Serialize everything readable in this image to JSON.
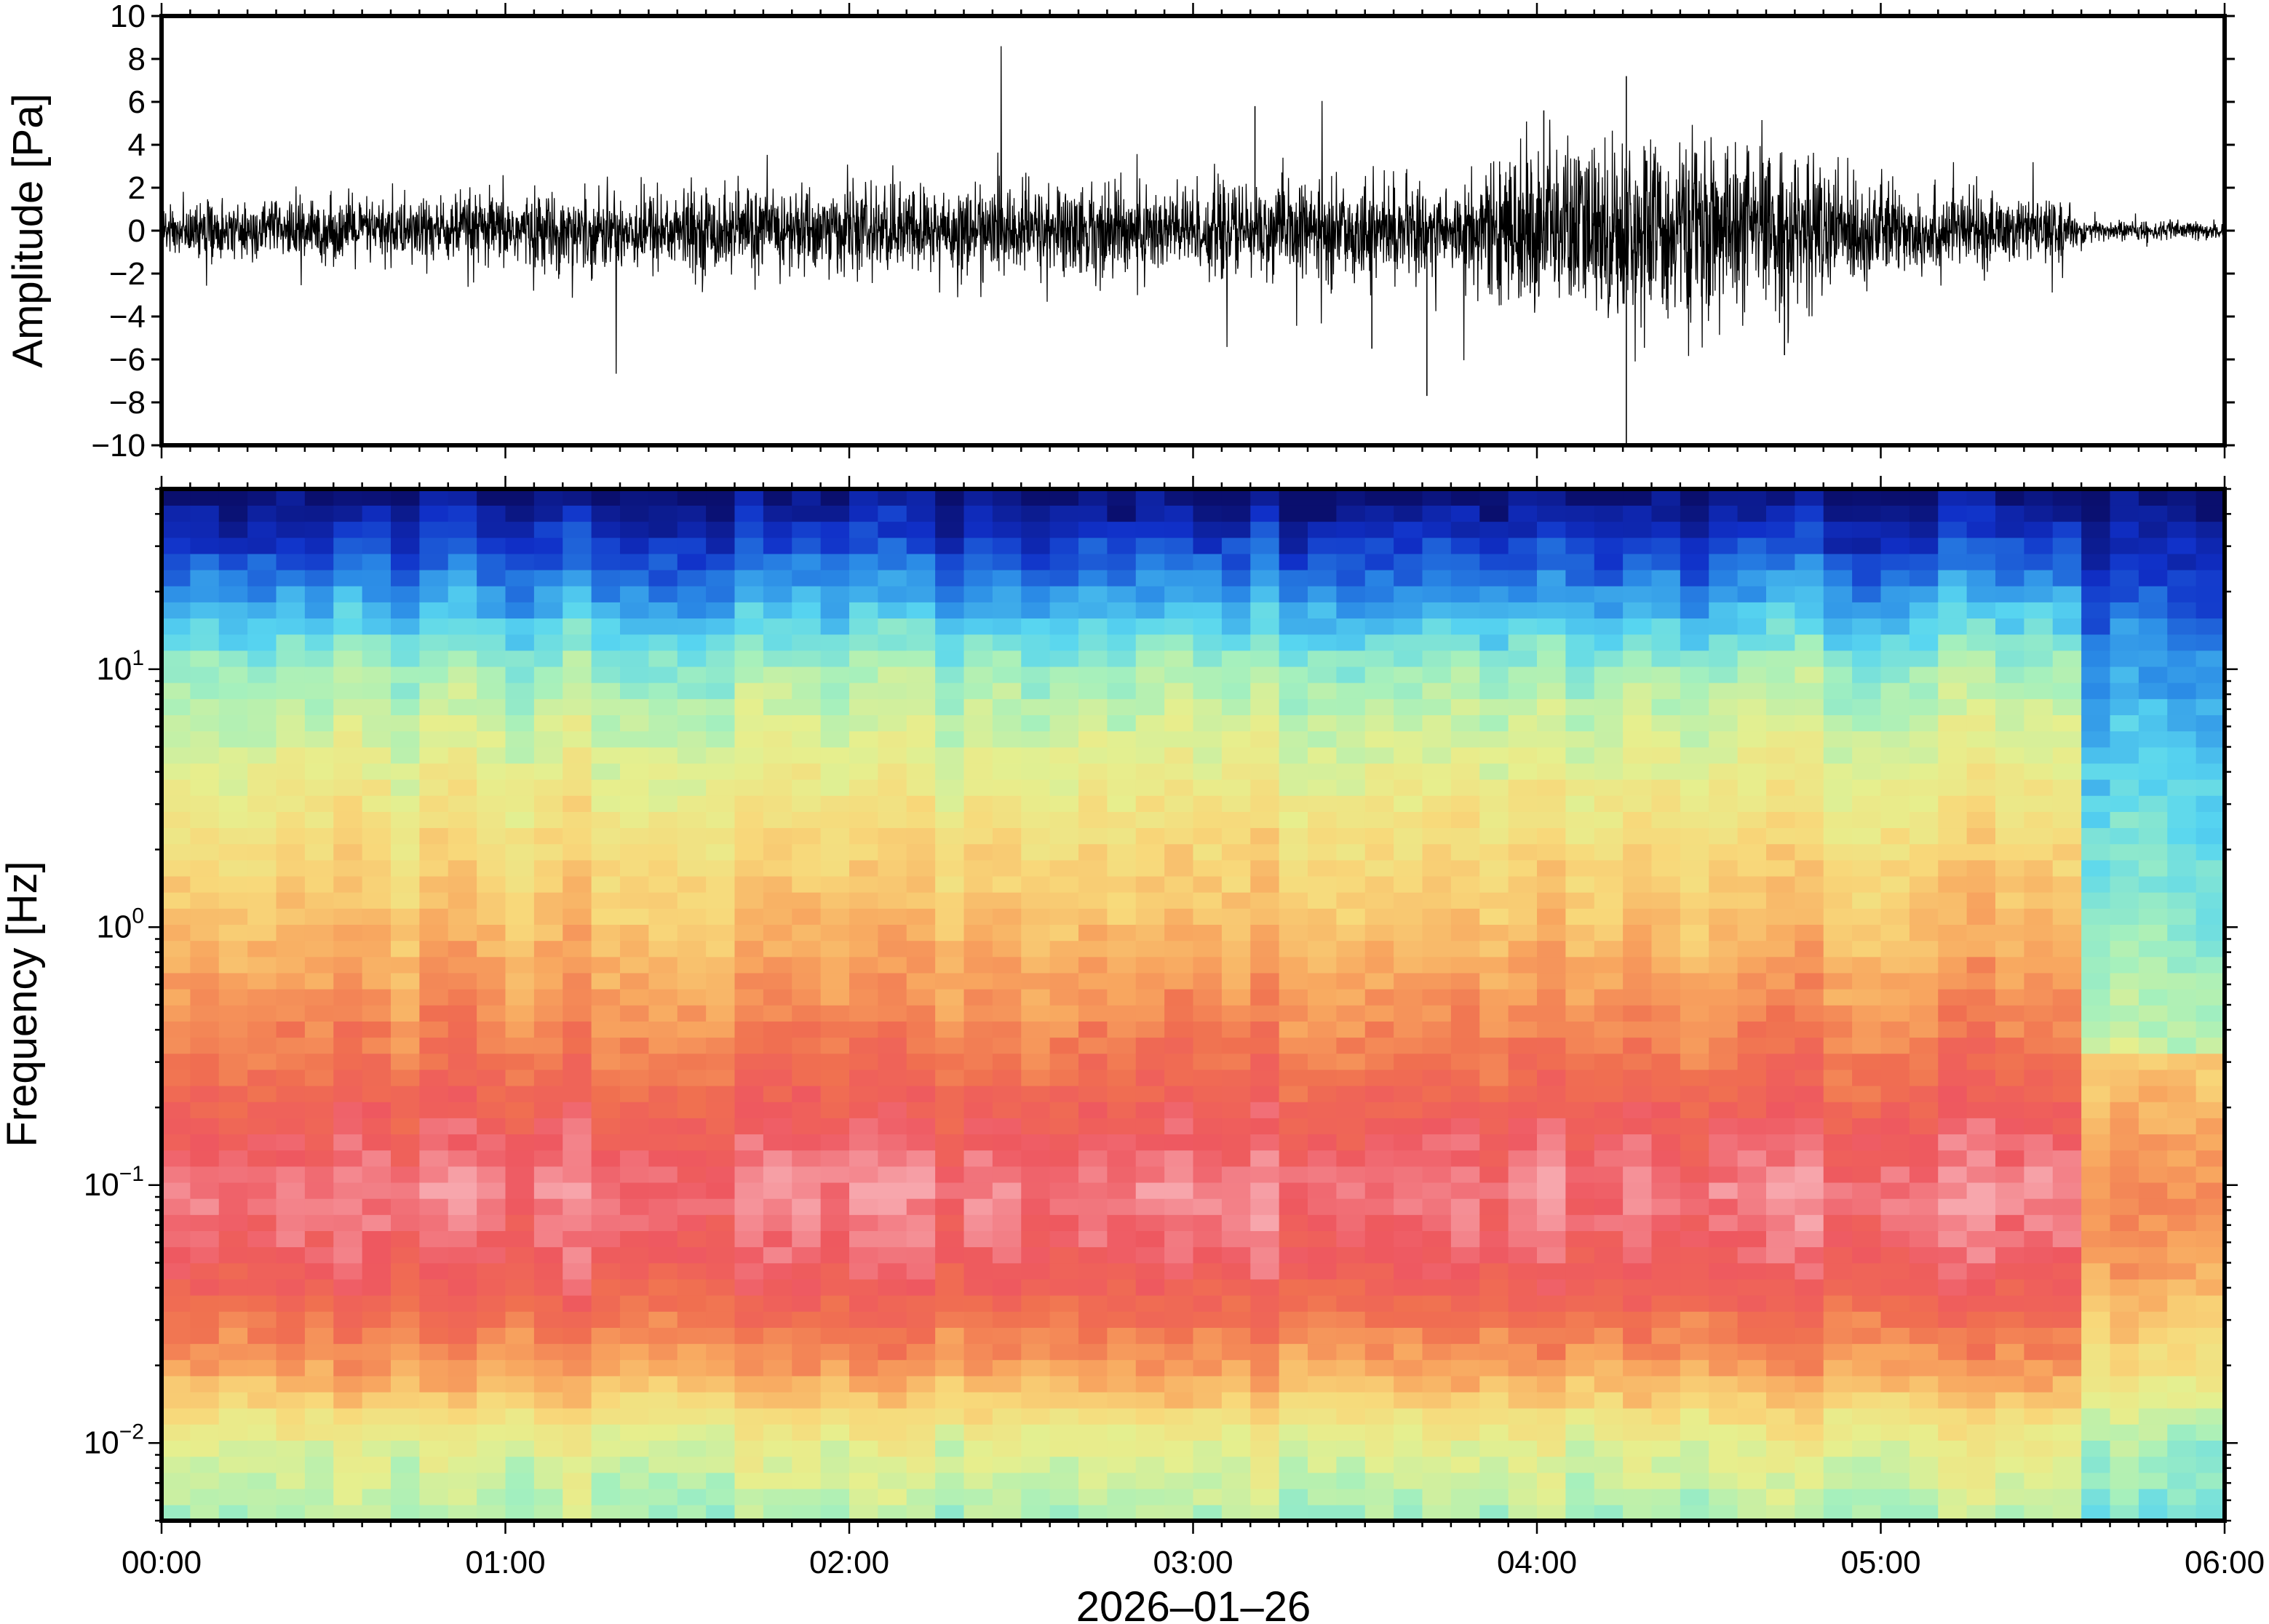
{
  "chart_data": [
    {
      "type": "line",
      "panel": "waveform",
      "ylabel": "Amplitude [Pa]",
      "ylim": [
        -10,
        10
      ],
      "yticks": [
        10,
        8,
        6,
        4,
        2,
        0,
        -2,
        -4,
        -6,
        -8,
        -10
      ],
      "ytick_labels": [
        "10",
        "8",
        "6",
        "4",
        "2",
        "0",
        "−2",
        "−4",
        "−6",
        "−8",
        "−10"
      ],
      "x_range_hours": [
        0,
        6
      ],
      "envelope": {
        "time_hours": [
          0.0,
          0.25,
          0.5,
          0.75,
          1.0,
          1.25,
          1.5,
          1.75,
          2.0,
          2.25,
          2.5,
          2.75,
          3.0,
          3.25,
          3.5,
          3.75,
          4.0,
          4.25,
          4.5,
          4.75,
          5.0,
          5.25,
          5.5,
          5.6,
          5.75,
          6.0
        ],
        "typical_amplitude": [
          1.0,
          1.2,
          1.3,
          1.4,
          1.5,
          1.6,
          1.7,
          1.8,
          1.8,
          1.8,
          1.9,
          2.0,
          1.9,
          1.9,
          2.0,
          1.8,
          3.5,
          3.8,
          3.6,
          3.2,
          2.0,
          1.6,
          1.2,
          0.5,
          0.4,
          0.4
        ]
      },
      "notable_peaks": [
        {
          "time_hours": 4.26,
          "value": 7.2
        },
        {
          "time_hours": 4.26,
          "value": -10.0
        },
        {
          "time_hours": 3.68,
          "value": -7.7
        },
        {
          "time_hours": 4.02,
          "value": 5.6
        },
        {
          "time_hours": 3.18,
          "value": 5.8
        },
        {
          "time_hours": 3.52,
          "value": -5.5
        },
        {
          "time_hours": 4.72,
          "value": -5.8
        }
      ]
    },
    {
      "type": "heatmap",
      "panel": "spectrogram",
      "ylabel": "Frequency [Hz]",
      "yscale": "log",
      "ylim": [
        0.005,
        50
      ],
      "yticks": [
        10,
        1,
        0.1,
        0.01
      ],
      "ytick_labels": [
        {
          "base": "10",
          "exp": "1"
        },
        {
          "base": "10",
          "exp": "0"
        },
        {
          "base": "10",
          "exp": "−1"
        },
        {
          "base": "10",
          "exp": "−2"
        }
      ],
      "xlabel": "2026–01–26",
      "x_range_hours": [
        0,
        6
      ],
      "xticks": [
        "00:00",
        "01:00",
        "02:00",
        "03:00",
        "04:00",
        "05:00",
        "06:00"
      ],
      "colormap": [
        "#0a0f6e",
        "#1030c8",
        "#2a8ae6",
        "#58d6f0",
        "#a6f0bc",
        "#e6ef8e",
        "#f8d87a",
        "#f8a860",
        "#f07050",
        "#ee5860",
        "#f7a6ac"
      ],
      "description_profile": {
        "frequency_hz": [
          50,
          20,
          10,
          3,
          1,
          0.3,
          0.1,
          0.05,
          0.02,
          0.01,
          0.005
        ],
        "relative_level_0_to_1": [
          0.0,
          0.22,
          0.4,
          0.55,
          0.66,
          0.8,
          0.96,
          0.9,
          0.72,
          0.5,
          0.42
        ]
      },
      "quiet_interval_hours": [
        5.55,
        6.0
      ]
    }
  ]
}
